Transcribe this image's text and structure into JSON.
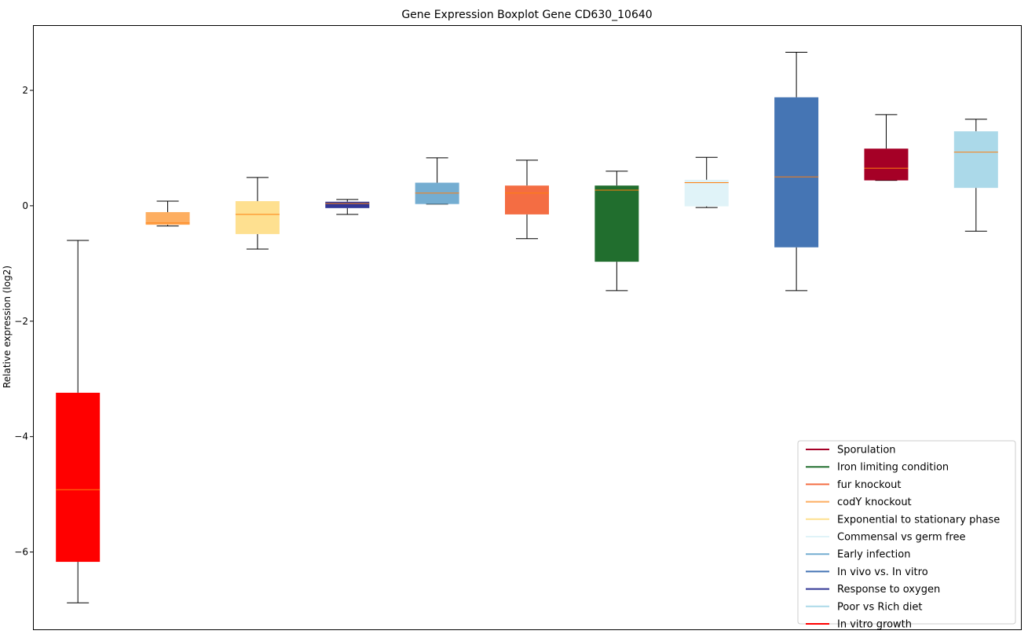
{
  "chart_data": {
    "type": "boxplot",
    "title": "Gene Expression Boxplot Gene CD630_10640",
    "xlabel": "",
    "ylabel": "Relative expression (log2)",
    "ylim": [
      -7.34,
      3.13
    ],
    "yticks": [
      2,
      0,
      -2,
      -4,
      -6
    ],
    "ytick_labels": [
      "2",
      "0",
      "−2",
      "−4",
      "−6"
    ],
    "median_color": "#ff7f0e",
    "legend_position": "lower-right",
    "boxes": [
      {
        "name": "In vitro growth",
        "color": "#ff0000",
        "whislo": -6.88,
        "q1": -6.17,
        "med": -4.92,
        "q3": -3.24,
        "whishi": -0.6
      },
      {
        "name": "codY knockout",
        "color": "#fdae61",
        "whislo": -0.35,
        "q1": -0.33,
        "med": -0.3,
        "q3": -0.11,
        "whishi": 0.08
      },
      {
        "name": "Exponential to stationary phase",
        "color": "#fee090",
        "whislo": -0.75,
        "q1": -0.49,
        "med": -0.15,
        "q3": 0.08,
        "whishi": 0.49
      },
      {
        "name": "Response to oxygen",
        "color": "#313695",
        "whislo": -0.15,
        "q1": -0.04,
        "med": 0.04,
        "q3": 0.07,
        "whishi": 0.11
      },
      {
        "name": "Early infection",
        "color": "#74add1",
        "whislo": 0.03,
        "q1": 0.03,
        "med": 0.22,
        "q3": 0.4,
        "whishi": 0.83
      },
      {
        "name": "fur knockout",
        "color": "#f46d43",
        "whislo": -0.57,
        "q1": -0.15,
        "med": 0.22,
        "q3": 0.35,
        "whishi": 0.79
      },
      {
        "name": "Iron limiting condition",
        "color": "#216e2e",
        "whislo": -1.47,
        "q1": -0.97,
        "med": 0.27,
        "q3": 0.35,
        "whishi": 0.6
      },
      {
        "name": "Commensal vs germ free",
        "color": "#e0f3f8",
        "whislo": -0.03,
        "q1": -0.01,
        "med": 0.4,
        "q3": 0.45,
        "whishi": 0.84
      },
      {
        "name": "In vivo vs. In vitro",
        "color": "#4575b4",
        "whislo": -1.47,
        "q1": -0.72,
        "med": 0.5,
        "q3": 1.88,
        "whishi": 2.66
      },
      {
        "name": "Sporulation",
        "color": "#a50026",
        "whislo": 0.44,
        "q1": 0.44,
        "med": 0.65,
        "q3": 0.99,
        "whishi": 1.58
      },
      {
        "name": "Poor vs Rich diet",
        "color": "#abd9e9",
        "whislo": -0.44,
        "q1": 0.31,
        "med": 0.93,
        "q3": 1.29,
        "whishi": 1.5
      }
    ],
    "legend": [
      {
        "label": "Sporulation",
        "color": "#a50026"
      },
      {
        "label": "Iron limiting condition",
        "color": "#216e2e"
      },
      {
        "label": "fur knockout",
        "color": "#f46d43"
      },
      {
        "label": "codY knockout",
        "color": "#fdae61"
      },
      {
        "label": "Exponential to stationary phase",
        "color": "#fee090"
      },
      {
        "label": "Commensal vs germ free",
        "color": "#e0f3f8"
      },
      {
        "label": "Early infection",
        "color": "#74add1"
      },
      {
        "label": "In vivo vs. In vitro",
        "color": "#4575b4"
      },
      {
        "label": "Response to oxygen",
        "color": "#313695"
      },
      {
        "label": "Poor vs Rich diet",
        "color": "#abd9e9"
      },
      {
        "label": "In vitro growth",
        "color": "#ff0000"
      }
    ]
  }
}
